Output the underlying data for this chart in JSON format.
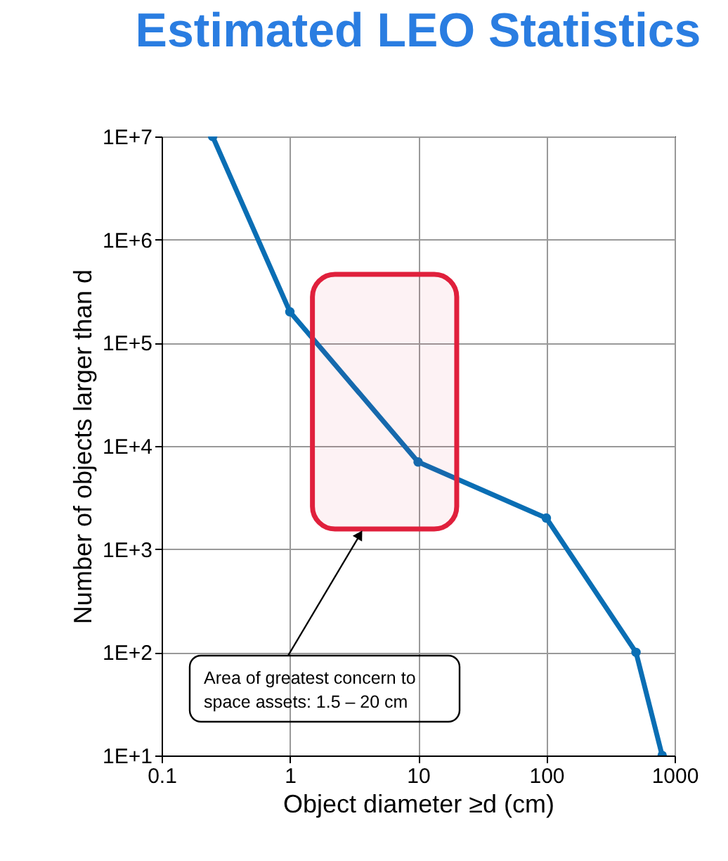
{
  "chart_data": {
    "type": "line",
    "title": "Estimated LEO Statistics",
    "xlabel": "Object diameter ≥d (cm)",
    "ylabel": "Number of objects larger than d",
    "x": [
      0.25,
      1,
      10,
      100,
      500,
      800
    ],
    "series": [
      {
        "color": "#0a6eb4",
        "values": [
          10000000,
          200000,
          7000,
          2000,
          100,
          10
        ]
      }
    ],
    "log": "xy",
    "xlim": [
      0.1,
      1000
    ],
    "xticks": [
      0.1,
      1,
      10,
      100,
      1000
    ],
    "ylim": [
      10,
      10000000
    ],
    "yticks": [
      {
        "value": 10,
        "label": "1E+1"
      },
      {
        "value": 100,
        "label": "1E+2"
      },
      {
        "value": 1000,
        "label": "1E+3"
      },
      {
        "value": 10000,
        "label": "1E+4"
      },
      {
        "value": 100000,
        "label": "1E+5"
      },
      {
        "value": 1000000,
        "label": "1E+6"
      },
      {
        "value": 10000000,
        "label": "1E+7"
      }
    ],
    "bands": [
      {
        "axis": "x",
        "from": 1.5,
        "to": 20,
        "label": "Area of greatest concern to space assets: 1.5 – 20 cm",
        "color": "#e0203c"
      }
    ],
    "grid": true,
    "marker": "circle",
    "line_style": "solid"
  }
}
